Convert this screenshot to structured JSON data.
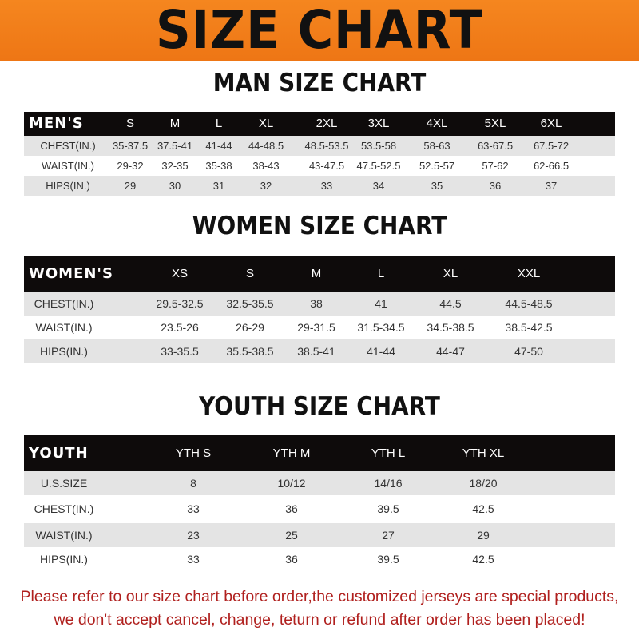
{
  "title": "SIZE CHART",
  "colors": {
    "banner": "#f07a1a",
    "header_row": "#0e0b0b",
    "stripe": "#e4e4e4",
    "note": "#b0201e"
  },
  "tables": [
    {
      "heading": "MAN SIZE CHART",
      "header": [
        "MEN'S",
        "S",
        "M",
        "L",
        "XL",
        "2XL",
        "3XL",
        "4XL",
        "5XL",
        "6XL"
      ],
      "rows": [
        [
          "CHEST(IN.)",
          "35-37.5",
          "37.5-41",
          "41-44",
          "44-48.5",
          "48.5-53.5",
          "53.5-58",
          "58-63",
          "63-67.5",
          "67.5-72"
        ],
        [
          "WAIST(IN.)",
          "29-32",
          "32-35",
          "35-38",
          "38-43",
          "43-47.5",
          "47.5-52.5",
          "52.5-57",
          "57-62",
          "62-66.5"
        ],
        [
          "HIPS(IN.)",
          "29",
          "30",
          "31",
          "32",
          "33",
          "34",
          "35",
          "36",
          "37"
        ]
      ]
    },
    {
      "heading": "WOMEN SIZE CHART",
      "header": [
        "WOMEN'S",
        "XS",
        "S",
        "M",
        "L",
        "XL",
        "XXL"
      ],
      "rows": [
        [
          "CHEST(IN.)",
          "29.5-32.5",
          "32.5-35.5",
          "38",
          "41",
          "44.5",
          "44.5-48.5"
        ],
        [
          "WAIST(IN.)",
          "23.5-26",
          "26-29",
          "29-31.5",
          "31.5-34.5",
          "34.5-38.5",
          "38.5-42.5"
        ],
        [
          "HIPS(IN.)",
          "33-35.5",
          "35.5-38.5",
          "38.5-41",
          "41-44",
          "44-47",
          "47-50"
        ]
      ]
    },
    {
      "heading": "YOUTH SIZE CHART",
      "header": [
        "YOUTH",
        "YTH S",
        "YTH M",
        "YTH L",
        "YTH XL"
      ],
      "rows": [
        [
          "U.S.SIZE",
          "8",
          "10/12",
          "14/16",
          "18/20"
        ],
        [
          "CHEST(IN.)",
          "33",
          "36",
          "39.5",
          "42.5"
        ],
        [
          "WAIST(IN.)",
          "23",
          "25",
          "27",
          "29"
        ],
        [
          "HIPS(IN.)",
          "33",
          "36",
          "39.5",
          "42.5"
        ]
      ]
    }
  ],
  "notice": {
    "line1": "Please refer to our size chart before order,the customized jerseys are special products,",
    "line2": "we don't accept cancel, change, teturn or refund after order has been placed!"
  }
}
